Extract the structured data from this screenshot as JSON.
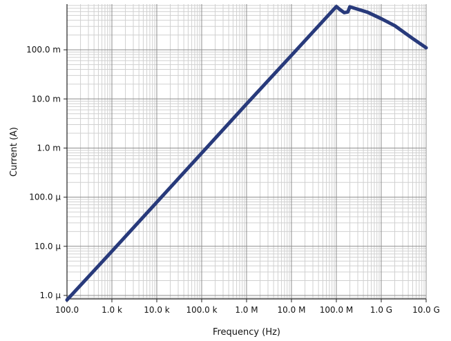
{
  "chart_data": {
    "type": "line",
    "title": "",
    "xlabel": "Frequency (Hz)",
    "ylabel": "Current (A)",
    "xscale": "log",
    "yscale": "log",
    "xlim": [
      100,
      10000000000
    ],
    "ylim": [
      8.5e-07,
      0.85
    ],
    "grid": true,
    "legend": "none",
    "colors": {
      "series": "#283a7b",
      "major_grid": "#8c8c8c",
      "minor_grid": "#d0d0d0",
      "axis": "#222222"
    },
    "x_ticks": [
      {
        "value": 100,
        "label": "100.0"
      },
      {
        "value": 1000,
        "label": "1.0 k"
      },
      {
        "value": 10000,
        "label": "10.0 k"
      },
      {
        "value": 100000,
        "label": "100.0 k"
      },
      {
        "value": 1000000,
        "label": "1.0 M"
      },
      {
        "value": 10000000,
        "label": "10.0 M"
      },
      {
        "value": 100000000,
        "label": "100.0 M"
      },
      {
        "value": 1000000000,
        "label": "1.0 G"
      },
      {
        "value": 10000000000,
        "label": "10.0 G"
      }
    ],
    "y_ticks": [
      {
        "value": 1e-06,
        "label": "1.0 µ"
      },
      {
        "value": 1e-05,
        "label": "10.0 µ"
      },
      {
        "value": 0.0001,
        "label": "100.0 µ"
      },
      {
        "value": 0.001,
        "label": "1.0 m"
      },
      {
        "value": 0.01,
        "label": "10.0 m"
      },
      {
        "value": 0.1,
        "label": "100.0 m"
      }
    ],
    "series": [
      {
        "x": [
          100,
          1000,
          10000,
          100000,
          1000000,
          10000000,
          100000000,
          120000000,
          150000000,
          180000000,
          200000000,
          300000000,
          500000000,
          1000000000,
          2000000000,
          5000000000,
          10000000000
        ],
        "y": [
          8.1e-07,
          7.9e-06,
          7.9e-05,
          0.00079,
          0.0079,
          0.077,
          0.76,
          0.66,
          0.57,
          0.59,
          0.75,
          0.67,
          0.58,
          0.43,
          0.31,
          0.17,
          0.11
        ]
      }
    ]
  }
}
